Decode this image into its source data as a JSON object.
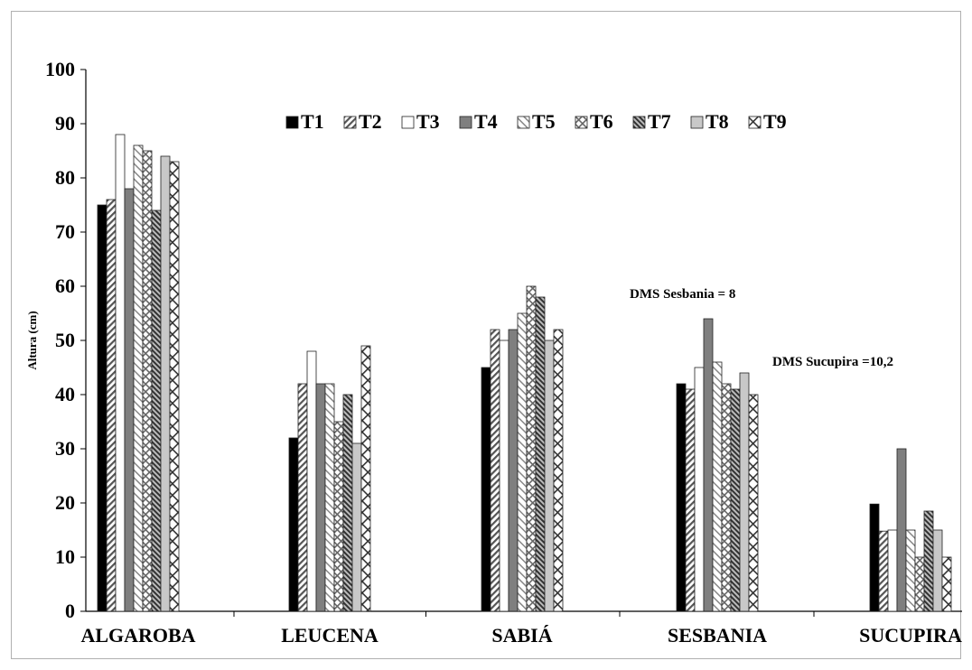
{
  "chart_data": {
    "type": "bar",
    "ylabel": "Altura (cm)",
    "xlabel": "",
    "title": "",
    "ylim": [
      0,
      100
    ],
    "yticks": [
      0,
      10,
      20,
      30,
      40,
      50,
      60,
      70,
      80,
      90,
      100
    ],
    "grid": false,
    "legend_position": "top",
    "categories": [
      "ALGAROBA",
      "LEUCENA",
      "SABIÁ",
      "SESBANIA",
      "SUCUPIRA"
    ],
    "series": [
      {
        "name": "T1",
        "values": [
          75,
          32,
          45,
          42,
          19.8
        ],
        "pattern": "solid-black"
      },
      {
        "name": "T2",
        "values": [
          76,
          42,
          52,
          41,
          14.8
        ],
        "pattern": "diag-right"
      },
      {
        "name": "T3",
        "values": [
          88,
          48,
          50,
          45,
          15
        ],
        "pattern": "white"
      },
      {
        "name": "T4",
        "values": [
          78,
          42,
          52,
          54,
          30
        ],
        "pattern": "solid-gray"
      },
      {
        "name": "T5",
        "values": [
          86,
          42,
          55,
          46,
          15
        ],
        "pattern": "diag-left-light"
      },
      {
        "name": "T6",
        "values": [
          85,
          35,
          60,
          42,
          10
        ],
        "pattern": "cross"
      },
      {
        "name": "T7",
        "values": [
          74,
          40,
          58,
          41,
          18.5
        ],
        "pattern": "diag-dense"
      },
      {
        "name": "T8",
        "values": [
          84,
          31,
          50,
          44,
          15
        ],
        "pattern": "light-gray"
      },
      {
        "name": "T9",
        "values": [
          83,
          49,
          52,
          40,
          10
        ],
        "pattern": "diag-cross-sparse"
      }
    ],
    "annotations": [
      {
        "text": "DMS Sesbania = 8"
      },
      {
        "text": "DMS Sucupira =10,2"
      }
    ]
  }
}
